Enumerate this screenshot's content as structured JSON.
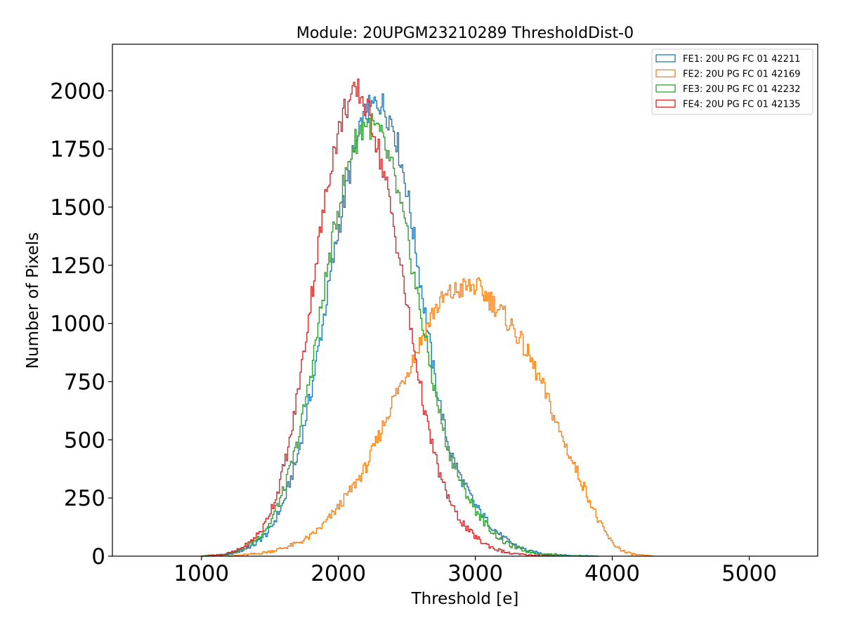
{
  "chart_data": {
    "type": "step-histogram",
    "title": "Module: 20UPGM23210289 ThresholdDist-0",
    "xlabel": "Threshold [e]",
    "ylabel": "Number of Pixels",
    "xlim": [
      350,
      5500
    ],
    "ylim": [
      0,
      2200
    ],
    "xticks": [
      1000,
      2000,
      3000,
      4000,
      5000
    ],
    "yticks": [
      0,
      250,
      500,
      750,
      1000,
      1250,
      1500,
      1750,
      2000
    ],
    "legend_position": "top-right",
    "series": [
      {
        "name": "FE1: 20U PG FC 01 42211",
        "color": "#1f77b4",
        "points": [
          [
            1000,
            0
          ],
          [
            1200,
            8
          ],
          [
            1300,
            25
          ],
          [
            1400,
            55
          ],
          [
            1500,
            110
          ],
          [
            1600,
            230
          ],
          [
            1700,
            420
          ],
          [
            1800,
            700
          ],
          [
            1900,
            1050
          ],
          [
            2000,
            1400
          ],
          [
            2100,
            1700
          ],
          [
            2200,
            1900
          ],
          [
            2300,
            1960
          ],
          [
            2400,
            1860
          ],
          [
            2500,
            1580
          ],
          [
            2600,
            1180
          ],
          [
            2700,
            780
          ],
          [
            2800,
            480
          ],
          [
            2900,
            330
          ],
          [
            3000,
            220
          ],
          [
            3100,
            140
          ],
          [
            3200,
            80
          ],
          [
            3300,
            45
          ],
          [
            3400,
            20
          ],
          [
            3500,
            10
          ],
          [
            3700,
            3
          ],
          [
            3900,
            0
          ]
        ]
      },
      {
        "name": "FE2: 20U PG FC 01 42169",
        "color": "#ff7f0e",
        "points": [
          [
            1200,
            0
          ],
          [
            1400,
            10
          ],
          [
            1500,
            20
          ],
          [
            1600,
            35
          ],
          [
            1700,
            55
          ],
          [
            1800,
            85
          ],
          [
            1900,
            140
          ],
          [
            2000,
            210
          ],
          [
            2100,
            290
          ],
          [
            2200,
            380
          ],
          [
            2300,
            520
          ],
          [
            2400,
            670
          ],
          [
            2500,
            790
          ],
          [
            2600,
            920
          ],
          [
            2700,
            1060
          ],
          [
            2800,
            1120
          ],
          [
            2900,
            1150
          ],
          [
            3000,
            1160
          ],
          [
            3100,
            1110
          ],
          [
            3200,
            1040
          ],
          [
            3300,
            960
          ],
          [
            3400,
            850
          ],
          [
            3500,
            720
          ],
          [
            3600,
            560
          ],
          [
            3700,
            420
          ],
          [
            3800,
            290
          ],
          [
            3900,
            150
          ],
          [
            4000,
            55
          ],
          [
            4100,
            15
          ],
          [
            4200,
            4
          ],
          [
            4300,
            0
          ]
        ]
      },
      {
        "name": "FE3: 20U PG FC 01 42232",
        "color": "#2ca02c",
        "points": [
          [
            1000,
            0
          ],
          [
            1200,
            10
          ],
          [
            1300,
            30
          ],
          [
            1400,
            70
          ],
          [
            1500,
            140
          ],
          [
            1600,
            280
          ],
          [
            1700,
            480
          ],
          [
            1800,
            790
          ],
          [
            1900,
            1160
          ],
          [
            2000,
            1500
          ],
          [
            2100,
            1750
          ],
          [
            2200,
            1870
          ],
          [
            2300,
            1820
          ],
          [
            2400,
            1650
          ],
          [
            2500,
            1380
          ],
          [
            2600,
            1050
          ],
          [
            2700,
            720
          ],
          [
            2800,
            460
          ],
          [
            2900,
            310
          ],
          [
            3000,
            200
          ],
          [
            3100,
            120
          ],
          [
            3200,
            65
          ],
          [
            3300,
            35
          ],
          [
            3400,
            18
          ],
          [
            3500,
            8
          ],
          [
            3700,
            2
          ],
          [
            3900,
            0
          ]
        ]
      },
      {
        "name": "FE4: 20U PG FC 01 42135",
        "color": "#d62728",
        "points": [
          [
            1000,
            0
          ],
          [
            1150,
            5
          ],
          [
            1250,
            20
          ],
          [
            1350,
            55
          ],
          [
            1450,
            120
          ],
          [
            1550,
            260
          ],
          [
            1650,
            500
          ],
          [
            1750,
            880
          ],
          [
            1850,
            1320
          ],
          [
            1950,
            1700
          ],
          [
            2050,
            1930
          ],
          [
            2150,
            2000
          ],
          [
            2250,
            1860
          ],
          [
            2350,
            1600
          ],
          [
            2450,
            1270
          ],
          [
            2550,
            900
          ],
          [
            2650,
            560
          ],
          [
            2750,
            330
          ],
          [
            2850,
            190
          ],
          [
            2950,
            110
          ],
          [
            3050,
            60
          ],
          [
            3150,
            30
          ],
          [
            3250,
            12
          ],
          [
            3400,
            4
          ],
          [
            3600,
            0
          ]
        ]
      }
    ]
  }
}
